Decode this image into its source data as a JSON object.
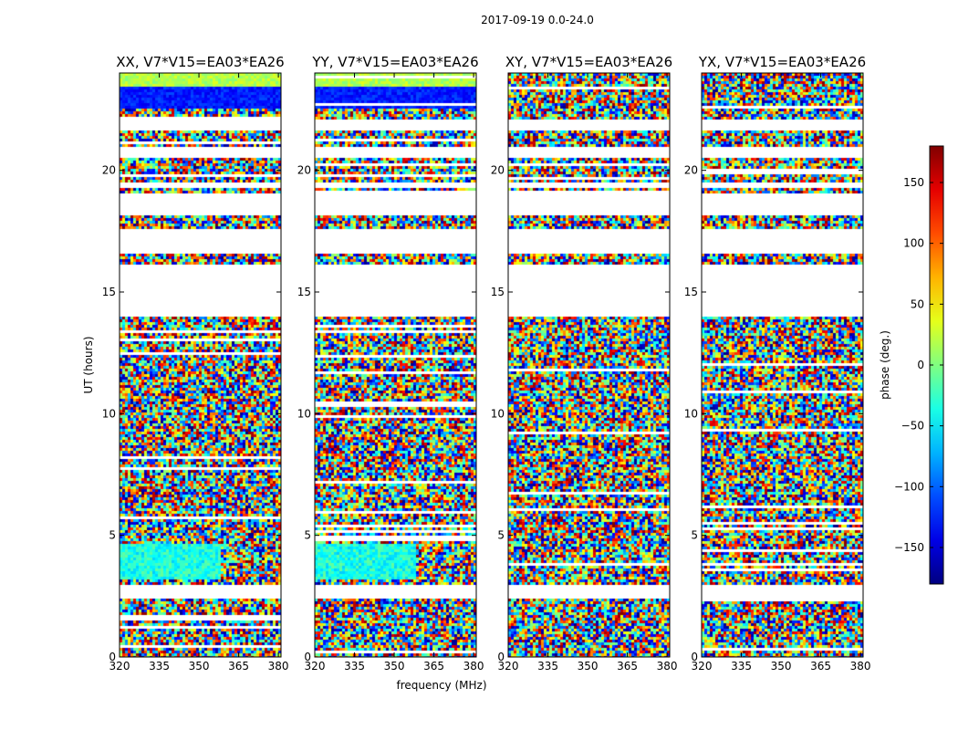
{
  "figure": {
    "suptitle": "2017-09-19 0.0-24.0",
    "xlabel": "frequency (MHz)",
    "ylabel": "UT (hours)",
    "colorbar_label": "phase (deg.)"
  },
  "chart_data": {
    "type": "heatmap",
    "title": "2017-09-19 0.0-24.0",
    "xlabel": "frequency (MHz)",
    "ylabel": "UT (hours)",
    "xlim": [
      320,
      381
    ],
    "ylim": [
      0,
      24
    ],
    "x_ticks": [
      "320",
      "335",
      "350",
      "365",
      "380"
    ],
    "x_tick_values": [
      320,
      335,
      350,
      365,
      380
    ],
    "y_ticks": [
      "0",
      "5",
      "10",
      "15",
      "20"
    ],
    "y_tick_values": [
      0,
      5,
      10,
      15,
      20
    ],
    "colormap": "jet",
    "panels": [
      {
        "title": "XX, V7*V15=EA03*EA26",
        "polarization": "XX"
      },
      {
        "title": "YY, V7*V15=EA03*EA26",
        "polarization": "YY"
      },
      {
        "title": "XY, V7*V15=EA03*EA26",
        "polarization": "XY"
      },
      {
        "title": "YX, V7*V15=EA03*EA26",
        "polarization": "YX"
      }
    ],
    "colorbar": {
      "label": "phase (deg.)",
      "range": [
        -180,
        180
      ],
      "ticks": [
        "150",
        "100",
        "50",
        "0",
        "−50",
        "−100",
        "−150"
      ],
      "tick_values": [
        150,
        100,
        50,
        0,
        -50,
        -100,
        -150
      ]
    },
    "data_gaps_hours": [
      [
        2.4,
        3.0
      ],
      [
        14.1,
        16.2
      ],
      [
        16.6,
        17.7
      ],
      [
        18.2,
        19.1
      ],
      [
        19.3,
        19.6
      ],
      [
        20.6,
        21.0
      ],
      [
        21.7,
        22.2
      ]
    ]
  }
}
